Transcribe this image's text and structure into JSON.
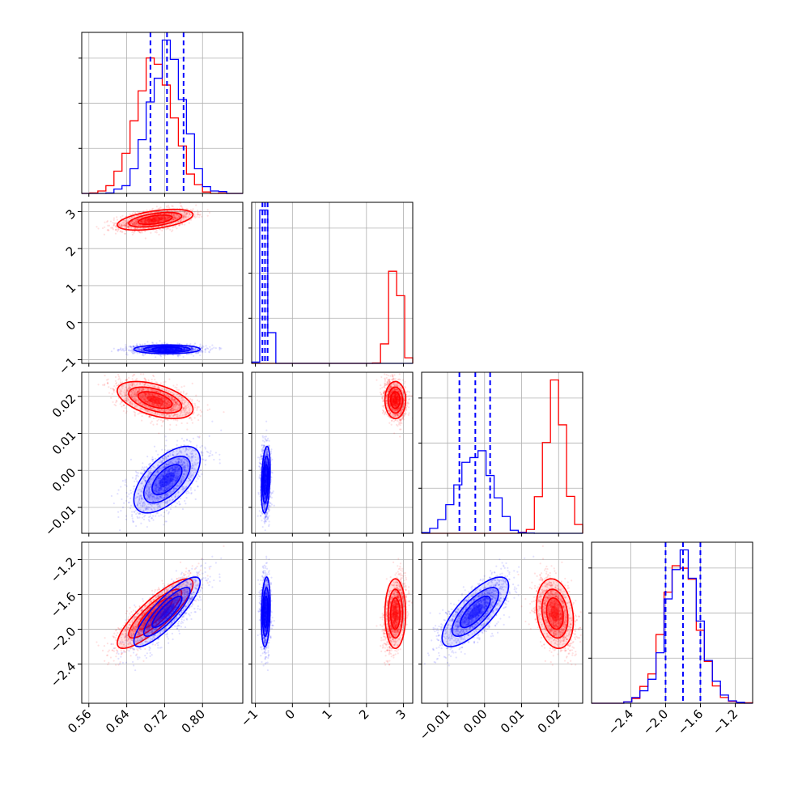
{
  "chart_data": {
    "type": "corner",
    "grid": true,
    "colors": {
      "red": "#ff0000",
      "blue": "#0000ff"
    },
    "parameters": [
      {
        "range": [
          0.545,
          0.885
        ],
        "ticks": [
          0.56,
          0.64,
          0.72,
          0.8
        ],
        "tick_labels": [
          "0.56",
          "0.64",
          "0.72",
          "0.80"
        ]
      },
      {
        "range": [
          -1.1,
          3.25
        ],
        "ticks": [
          -1,
          0,
          1,
          2,
          3
        ],
        "tick_labels": [
          "−1",
          "0",
          "1",
          "2",
          "3"
        ]
      },
      {
        "range": [
          -0.017,
          0.0265
        ],
        "ticks": [
          -0.01,
          0.0,
          0.01,
          0.02
        ],
        "tick_labels": [
          "−0.01",
          "0.00",
          "0.01",
          "0.02"
        ]
      },
      {
        "range": [
          -2.85,
          -1.0
        ],
        "ticks": [
          -2.4,
          -2.0,
          -1.6,
          -1.2
        ],
        "tick_labels": [
          "−2.4",
          "−2.0",
          "−1.6",
          "−1.2"
        ]
      }
    ],
    "series": [
      {
        "color": "red",
        "mean": [
          0.7,
          2.78,
          0.019,
          -1.82
        ],
        "std": [
          0.04,
          0.14,
          0.0025,
          0.2
        ],
        "corr": [
          [
            0,
            3,
            0.85
          ],
          [
            0,
            2,
            -0.5
          ],
          [
            2,
            3,
            -0.2
          ],
          [
            0,
            1,
            0.5
          ]
        ]
      },
      {
        "color": "blue",
        "mean": [
          0.725,
          -0.72,
          -0.0025,
          -1.8
        ],
        "std": [
          0.035,
          0.06,
          0.0045,
          0.2
        ],
        "corr": [
          [
            0,
            3,
            0.85
          ],
          [
            0,
            2,
            0.6
          ],
          [
            2,
            3,
            0.75
          ],
          [
            1,
            2,
            0.3
          ],
          [
            1,
            3,
            0.2
          ]
        ]
      }
    ],
    "quantile_lines_blue": {
      "0": [
        0.69,
        0.725,
        0.76
      ],
      "1": [
        -0.81,
        -0.74,
        -0.67
      ],
      "2": [
        -0.0068,
        -0.0025,
        0.0015
      ],
      "3": [
        -2.0,
        -1.8,
        -1.6
      ]
    }
  }
}
